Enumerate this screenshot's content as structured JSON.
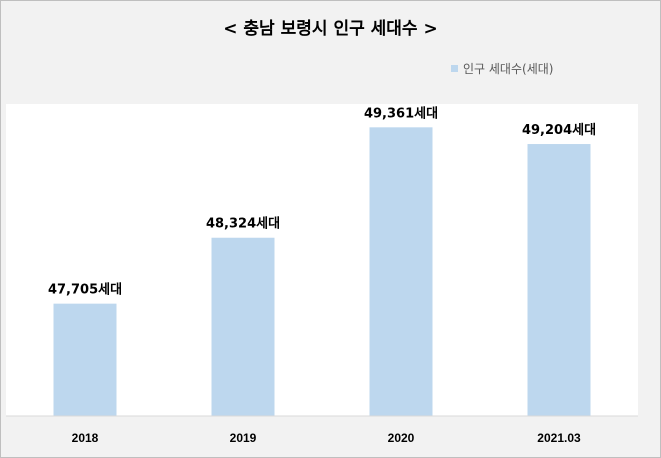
{
  "chart_data": {
    "type": "bar",
    "title": "< 충남 보령시 인구 세대수 >",
    "xlabel": "",
    "ylabel": "",
    "categories": [
      "2018",
      "2019",
      "2020",
      "2021.03"
    ],
    "series": [
      {
        "name": "인구 세대수(세대)",
        "values": [
          47705,
          48324,
          49361,
          49204
        ],
        "data_labels": [
          "47,705세대",
          "48,324세대",
          "49,361세대",
          "49,204세대"
        ]
      }
    ],
    "ylim": [
      46650,
      49580
    ],
    "grid": false,
    "legend_position": "top-right",
    "colors": {
      "bar": "#bdd7ee",
      "plot_bg": "#ffffff",
      "chart_bg": "#f2f2f2",
      "axis": "#d9d9d9"
    }
  }
}
